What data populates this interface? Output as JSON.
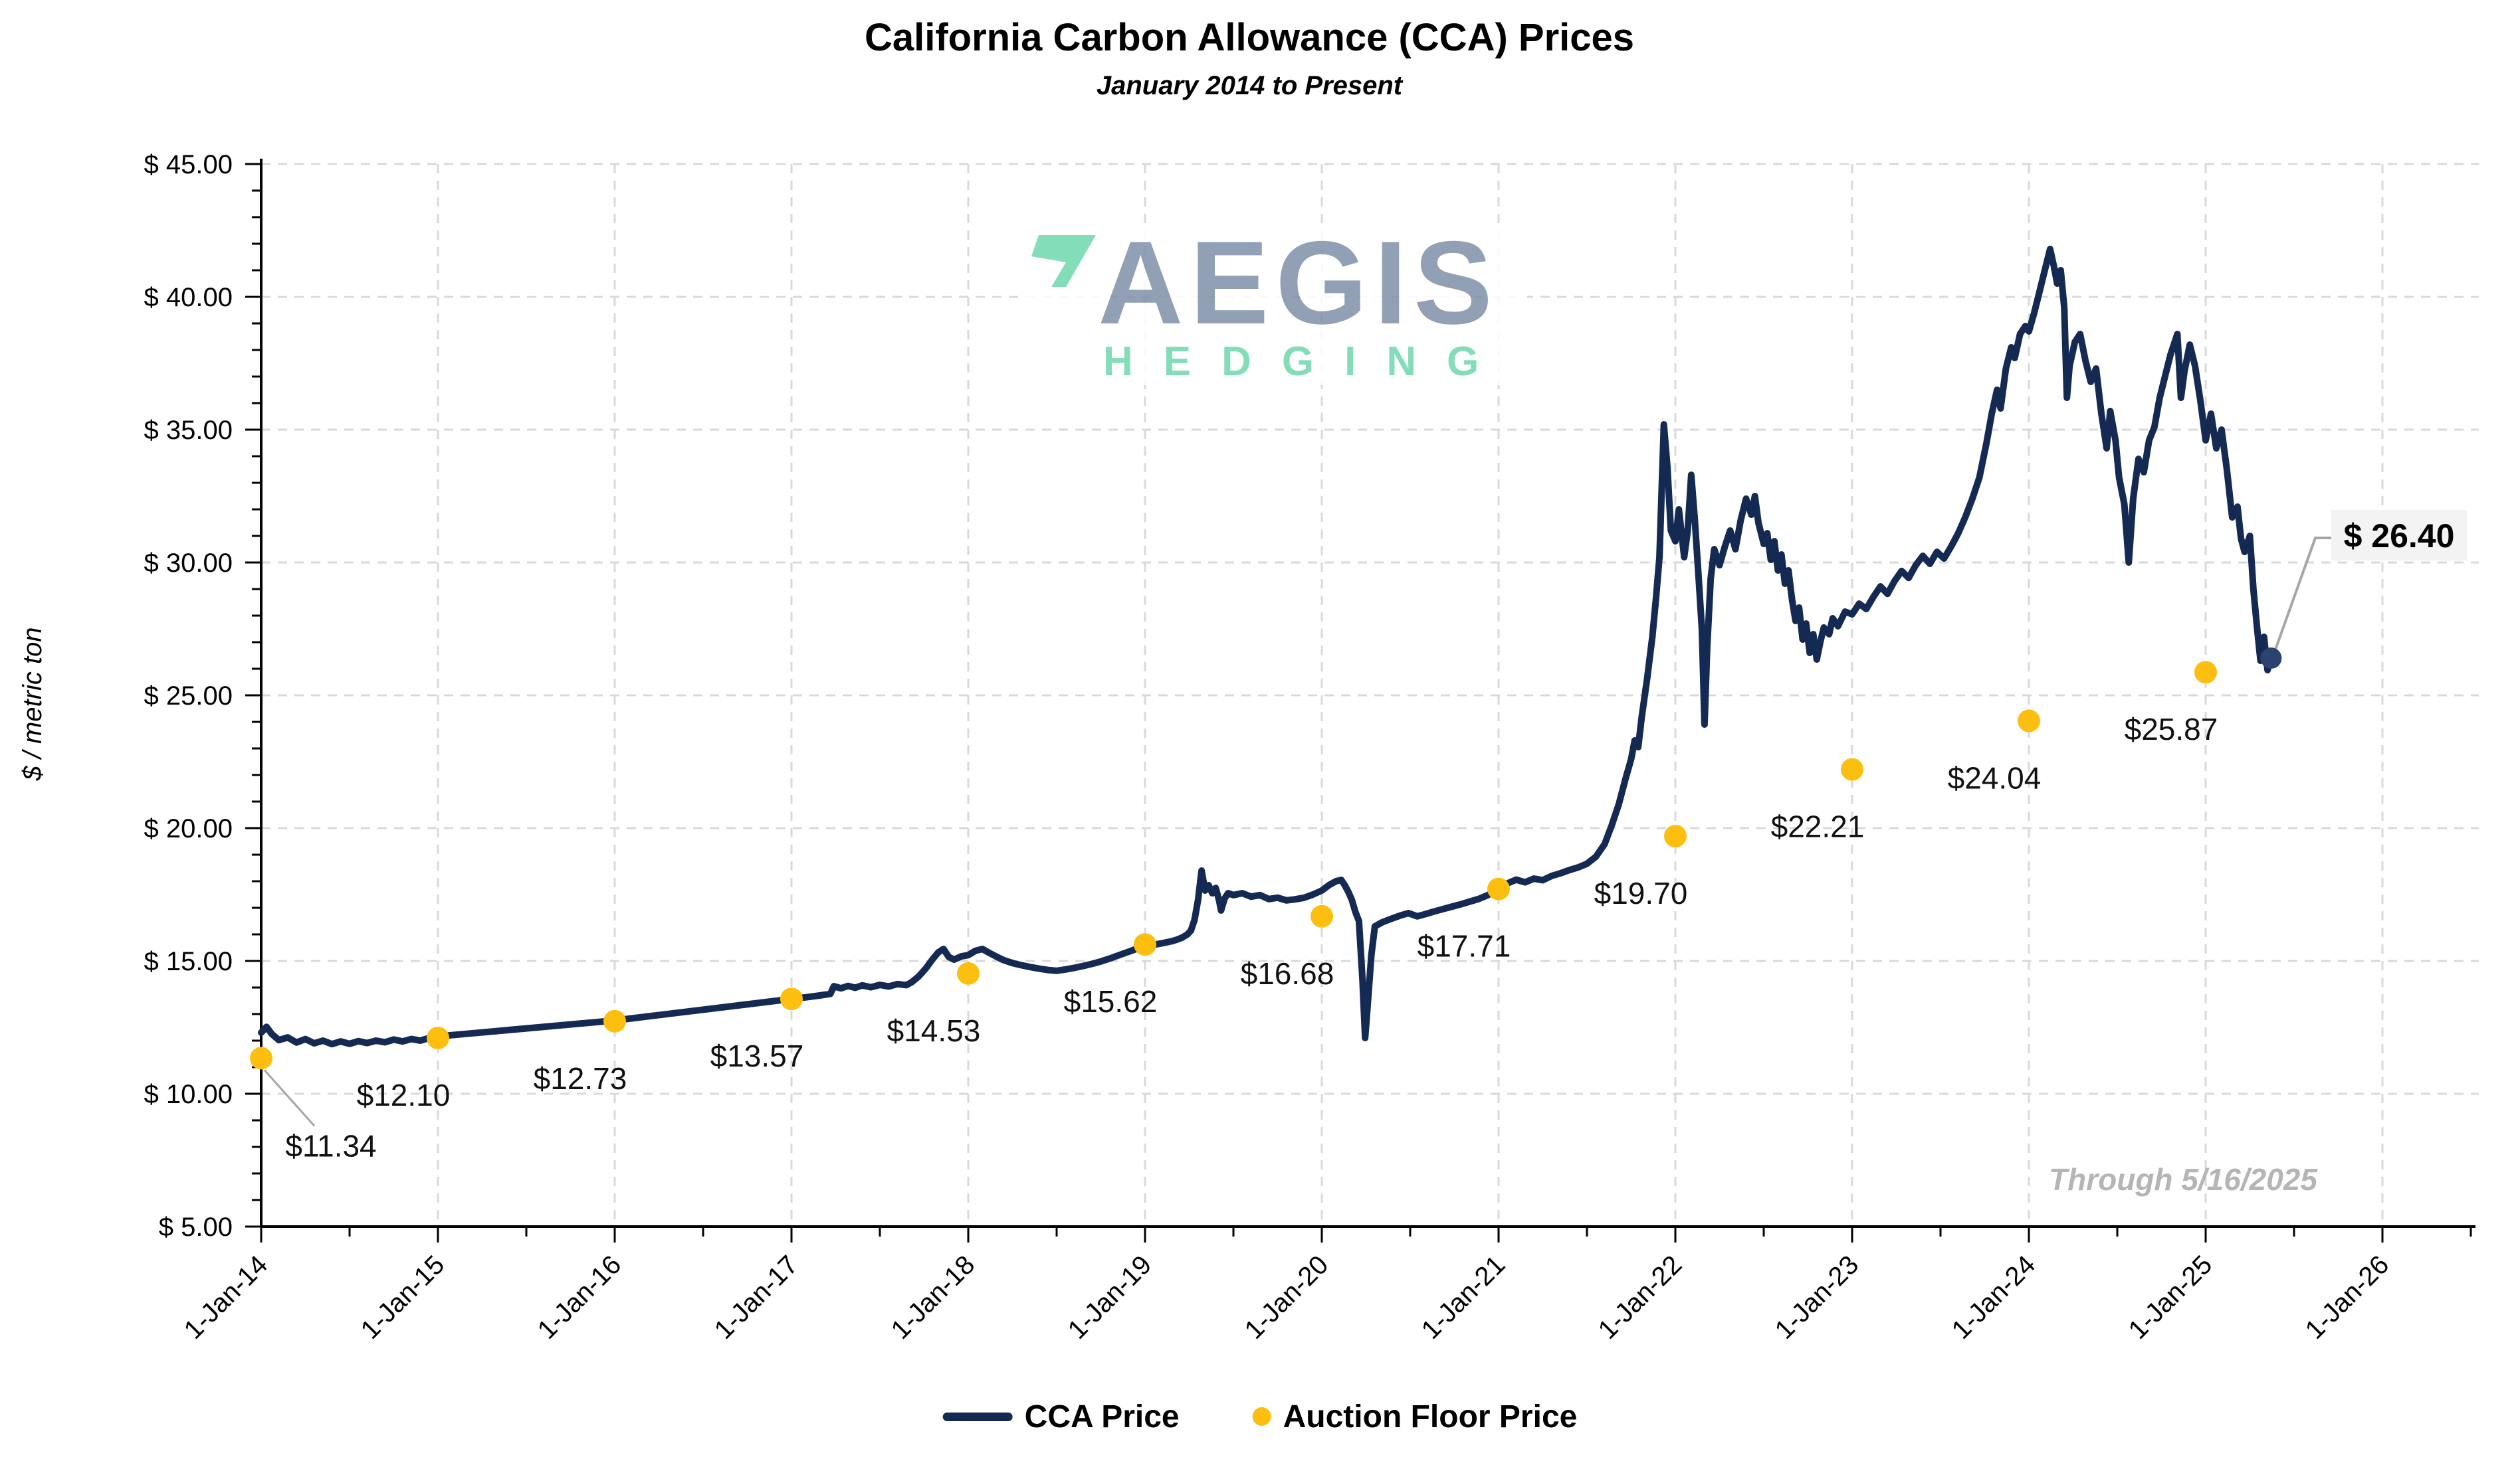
{
  "header": {
    "title": "California Carbon Allowance (CCA) Prices",
    "subtitle": "January 2014 to Present"
  },
  "watermark": {
    "name": "AEGIS",
    "tagline": "HEDGING",
    "name_color": "#7e90a8",
    "accent_color": "#6fd8ad"
  },
  "note": {
    "text": "Through 5/16/2025"
  },
  "callout": {
    "label": "$ 26.40"
  },
  "legend": {
    "items": [
      {
        "label": "CCA Price",
        "type": "line",
        "color": "#142a52"
      },
      {
        "label": "Auction Floor Price",
        "type": "dot",
        "color": "#fcbf10"
      }
    ]
  },
  "chart_data": {
    "type": "line",
    "title": "California Carbon Allowance (CCA) Prices",
    "subtitle": "January 2014 to Present",
    "xlabel": "",
    "ylabel": "$ / metric ton",
    "ylim": [
      5,
      45
    ],
    "ytick_step": 5,
    "grid": "dashed horizontal and vertical",
    "legend_position": "bottom center",
    "y_axis": {
      "tick_labels": [
        "$ 5.00",
        "$ 10.00",
        "$ 15.00",
        "$ 20.00",
        "$ 25.00",
        "$ 30.00",
        "$ 35.00",
        "$ 40.00",
        "$ 45.00"
      ]
    },
    "x_axis": {
      "tick_labels": [
        "1-Jan-14",
        "1-Jan-15",
        "1-Jan-16",
        "1-Jan-17",
        "1-Jan-18",
        "1-Jan-19",
        "1-Jan-20",
        "1-Jan-21",
        "1-Jan-22",
        "1-Jan-23",
        "1-Jan-24",
        "1-Jan-25",
        "1-Jan-26"
      ],
      "minor_ticks": "semiannual"
    },
    "series": [
      {
        "name": "CCA Price",
        "color": "#142a52",
        "x_unit": "years since 2014-01-01",
        "points": [
          [
            0,
            12.3
          ],
          [
            0.03,
            12.52
          ],
          [
            0.06,
            12.25
          ],
          [
            0.1,
            12.02
          ],
          [
            0.15,
            12.12
          ],
          [
            0.2,
            11.93
          ],
          [
            0.25,
            12.06
          ],
          [
            0.3,
            11.9
          ],
          [
            0.35,
            12.0
          ],
          [
            0.4,
            11.87
          ],
          [
            0.45,
            11.97
          ],
          [
            0.5,
            11.88
          ],
          [
            0.55,
            11.98
          ],
          [
            0.6,
            11.91
          ],
          [
            0.65,
            12.0
          ],
          [
            0.7,
            11.94
          ],
          [
            0.75,
            12.04
          ],
          [
            0.8,
            11.97
          ],
          [
            0.85,
            12.06
          ],
          [
            0.9,
            12.0
          ],
          [
            0.95,
            12.1
          ],
          [
            1.0,
            12.16
          ],
          [
            1.1,
            12.22
          ],
          [
            1.2,
            12.28
          ],
          [
            2.0,
            12.76
          ],
          [
            3.0,
            13.57
          ],
          [
            3.08,
            13.63
          ],
          [
            3.16,
            13.7
          ],
          [
            3.22,
            13.76
          ],
          [
            3.24,
            14.05
          ],
          [
            3.28,
            13.97
          ],
          [
            3.32,
            14.06
          ],
          [
            3.36,
            13.99
          ],
          [
            3.4,
            14.08
          ],
          [
            3.45,
            14.01
          ],
          [
            3.5,
            14.1
          ],
          [
            3.55,
            14.04
          ],
          [
            3.6,
            14.13
          ],
          [
            3.65,
            14.09
          ],
          [
            3.68,
            14.2
          ],
          [
            3.72,
            14.42
          ],
          [
            3.76,
            14.72
          ],
          [
            3.8,
            15.08
          ],
          [
            3.83,
            15.32
          ],
          [
            3.86,
            15.45
          ],
          [
            3.89,
            15.15
          ],
          [
            3.92,
            15.05
          ],
          [
            3.96,
            15.17
          ],
          [
            4.0,
            15.22
          ],
          [
            4.04,
            15.38
          ],
          [
            4.08,
            15.45
          ],
          [
            4.12,
            15.3
          ],
          [
            4.16,
            15.16
          ],
          [
            4.2,
            15.03
          ],
          [
            4.25,
            14.92
          ],
          [
            4.3,
            14.84
          ],
          [
            4.35,
            14.77
          ],
          [
            4.4,
            14.71
          ],
          [
            4.45,
            14.66
          ],
          [
            4.5,
            14.63
          ],
          [
            4.55,
            14.68
          ],
          [
            4.6,
            14.74
          ],
          [
            4.65,
            14.81
          ],
          [
            4.7,
            14.89
          ],
          [
            4.75,
            14.98
          ],
          [
            4.8,
            15.09
          ],
          [
            4.85,
            15.21
          ],
          [
            4.9,
            15.33
          ],
          [
            4.95,
            15.45
          ],
          [
            5.0,
            15.55
          ],
          [
            5.05,
            15.61
          ],
          [
            5.1,
            15.67
          ],
          [
            5.15,
            15.74
          ],
          [
            5.18,
            15.8
          ],
          [
            5.21,
            15.88
          ],
          [
            5.24,
            16.0
          ],
          [
            5.26,
            16.15
          ],
          [
            5.28,
            16.55
          ],
          [
            5.3,
            17.3
          ],
          [
            5.32,
            18.4
          ],
          [
            5.34,
            17.65
          ],
          [
            5.36,
            17.85
          ],
          [
            5.38,
            17.55
          ],
          [
            5.4,
            17.75
          ],
          [
            5.42,
            17.25
          ],
          [
            5.43,
            16.9
          ],
          [
            5.45,
            17.35
          ],
          [
            5.47,
            17.55
          ],
          [
            5.5,
            17.48
          ],
          [
            5.55,
            17.55
          ],
          [
            5.6,
            17.42
          ],
          [
            5.65,
            17.48
          ],
          [
            5.7,
            17.33
          ],
          [
            5.75,
            17.38
          ],
          [
            5.8,
            17.28
          ],
          [
            5.85,
            17.32
          ],
          [
            5.9,
            17.38
          ],
          [
            5.95,
            17.5
          ],
          [
            6.0,
            17.65
          ],
          [
            6.04,
            17.85
          ],
          [
            6.08,
            18.0
          ],
          [
            6.11,
            18.05
          ],
          [
            6.13,
            17.85
          ],
          [
            6.15,
            17.6
          ],
          [
            6.17,
            17.3
          ],
          [
            6.19,
            16.85
          ],
          [
            6.21,
            16.5
          ],
          [
            6.23,
            14.3
          ],
          [
            6.245,
            12.1
          ],
          [
            6.26,
            13.4
          ],
          [
            6.28,
            15.2
          ],
          [
            6.3,
            16.3
          ],
          [
            6.34,
            16.45
          ],
          [
            6.39,
            16.58
          ],
          [
            6.44,
            16.7
          ],
          [
            6.49,
            16.8
          ],
          [
            6.54,
            16.68
          ],
          [
            6.59,
            16.77
          ],
          [
            6.64,
            16.87
          ],
          [
            6.69,
            16.96
          ],
          [
            6.74,
            17.05
          ],
          [
            6.79,
            17.14
          ],
          [
            6.84,
            17.24
          ],
          [
            6.89,
            17.34
          ],
          [
            6.94,
            17.48
          ],
          [
            7.0,
            17.71
          ],
          [
            7.05,
            17.92
          ],
          [
            7.1,
            18.06
          ],
          [
            7.15,
            17.96
          ],
          [
            7.2,
            18.1
          ],
          [
            7.25,
            18.04
          ],
          [
            7.3,
            18.2
          ],
          [
            7.35,
            18.3
          ],
          [
            7.4,
            18.42
          ],
          [
            7.45,
            18.52
          ],
          [
            7.5,
            18.66
          ],
          [
            7.55,
            18.92
          ],
          [
            7.6,
            19.4
          ],
          [
            7.64,
            20.1
          ],
          [
            7.68,
            20.9
          ],
          [
            7.72,
            21.9
          ],
          [
            7.75,
            22.6
          ],
          [
            7.77,
            23.3
          ],
          [
            7.79,
            23.05
          ],
          [
            7.81,
            24.2
          ],
          [
            7.84,
            25.6
          ],
          [
            7.87,
            27.2
          ],
          [
            7.89,
            28.6
          ],
          [
            7.91,
            30.2
          ],
          [
            7.935,
            35.2
          ],
          [
            7.955,
            33.6
          ],
          [
            7.975,
            31.2
          ],
          [
            8.0,
            30.8
          ],
          [
            8.02,
            32.0
          ],
          [
            8.05,
            30.2
          ],
          [
            8.07,
            31.2
          ],
          [
            8.09,
            33.3
          ],
          [
            8.11,
            31.6
          ],
          [
            8.13,
            29.6
          ],
          [
            8.15,
            27.5
          ],
          [
            8.165,
            23.9
          ],
          [
            8.18,
            26.8
          ],
          [
            8.2,
            29.4
          ],
          [
            8.22,
            30.5
          ],
          [
            8.25,
            29.9
          ],
          [
            8.28,
            30.6
          ],
          [
            8.31,
            31.2
          ],
          [
            8.34,
            30.5
          ],
          [
            8.37,
            31.6
          ],
          [
            8.4,
            32.4
          ],
          [
            8.43,
            31.8
          ],
          [
            8.45,
            32.5
          ],
          [
            8.47,
            31.5
          ],
          [
            8.5,
            30.7
          ],
          [
            8.52,
            31.1
          ],
          [
            8.54,
            30.1
          ],
          [
            8.56,
            30.8
          ],
          [
            8.58,
            29.7
          ],
          [
            8.6,
            30.3
          ],
          [
            8.62,
            29.2
          ],
          [
            8.64,
            29.7
          ],
          [
            8.66,
            28.6
          ],
          [
            8.68,
            27.8
          ],
          [
            8.7,
            28.3
          ],
          [
            8.72,
            27.1
          ],
          [
            8.74,
            27.7
          ],
          [
            8.76,
            26.6
          ],
          [
            8.78,
            27.3
          ],
          [
            8.8,
            26.35
          ],
          [
            8.82,
            27.0
          ],
          [
            8.84,
            27.55
          ],
          [
            8.87,
            27.3
          ],
          [
            8.89,
            27.9
          ],
          [
            8.92,
            27.6
          ],
          [
            8.96,
            28.15
          ],
          [
            9.0,
            28.05
          ],
          [
            9.04,
            28.45
          ],
          [
            9.08,
            28.25
          ],
          [
            9.12,
            28.7
          ],
          [
            9.16,
            29.1
          ],
          [
            9.2,
            28.82
          ],
          [
            9.24,
            29.3
          ],
          [
            9.28,
            29.68
          ],
          [
            9.32,
            29.42
          ],
          [
            9.36,
            29.9
          ],
          [
            9.4,
            30.25
          ],
          [
            9.44,
            29.95
          ],
          [
            9.48,
            30.4
          ],
          [
            9.52,
            30.15
          ],
          [
            9.56,
            30.6
          ],
          [
            9.6,
            31.1
          ],
          [
            9.64,
            31.7
          ],
          [
            9.68,
            32.4
          ],
          [
            9.72,
            33.2
          ],
          [
            9.76,
            34.5
          ],
          [
            9.79,
            35.6
          ],
          [
            9.82,
            36.5
          ],
          [
            9.84,
            35.8
          ],
          [
            9.87,
            37.3
          ],
          [
            9.9,
            38.1
          ],
          [
            9.92,
            37.7
          ],
          [
            9.95,
            38.6
          ],
          [
            9.98,
            38.9
          ],
          [
            10.0,
            38.7
          ],
          [
            10.03,
            39.4
          ],
          [
            10.06,
            40.2
          ],
          [
            10.09,
            41.0
          ],
          [
            10.12,
            41.8
          ],
          [
            10.14,
            41.2
          ],
          [
            10.16,
            40.5
          ],
          [
            10.18,
            41.0
          ],
          [
            10.2,
            39.6
          ],
          [
            10.215,
            36.2
          ],
          [
            10.23,
            37.4
          ],
          [
            10.26,
            38.3
          ],
          [
            10.29,
            38.6
          ],
          [
            10.32,
            37.6
          ],
          [
            10.35,
            36.8
          ],
          [
            10.38,
            37.3
          ],
          [
            10.41,
            35.6
          ],
          [
            10.44,
            34.3
          ],
          [
            10.46,
            35.7
          ],
          [
            10.49,
            34.6
          ],
          [
            10.51,
            33.2
          ],
          [
            10.54,
            32.2
          ],
          [
            10.565,
            30.0
          ],
          [
            10.59,
            32.4
          ],
          [
            10.62,
            33.9
          ],
          [
            10.65,
            33.4
          ],
          [
            10.68,
            34.6
          ],
          [
            10.71,
            35.1
          ],
          [
            10.74,
            36.2
          ],
          [
            10.77,
            37.0
          ],
          [
            10.8,
            37.8
          ],
          [
            10.84,
            38.6
          ],
          [
            10.86,
            36.2
          ],
          [
            10.88,
            37.2
          ],
          [
            10.91,
            38.2
          ],
          [
            10.94,
            37.4
          ],
          [
            10.97,
            36.1
          ],
          [
            11.0,
            34.6
          ],
          [
            11.03,
            35.6
          ],
          [
            11.06,
            34.3
          ],
          [
            11.09,
            35.0
          ],
          [
            11.12,
            33.5
          ],
          [
            11.15,
            31.7
          ],
          [
            11.18,
            32.1
          ],
          [
            11.2,
            30.9
          ],
          [
            11.22,
            30.4
          ],
          [
            11.25,
            31.0
          ],
          [
            11.27,
            29.0
          ],
          [
            11.29,
            27.6
          ],
          [
            11.31,
            26.3
          ],
          [
            11.33,
            27.2
          ],
          [
            11.35,
            25.95
          ],
          [
            11.37,
            26.4
          ]
        ]
      },
      {
        "name": "Auction Floor Price",
        "color": "#fcbf10",
        "points": [
          {
            "x": 0,
            "date": "1-Jan-14",
            "value": 11.34
          },
          {
            "x": 1,
            "date": "1-Jan-15",
            "value": 12.1
          },
          {
            "x": 2,
            "date": "1-Jan-16",
            "value": 12.73
          },
          {
            "x": 3,
            "date": "1-Jan-17",
            "value": 13.57
          },
          {
            "x": 4,
            "date": "1-Jan-18",
            "value": 14.53
          },
          {
            "x": 5,
            "date": "1-Jan-19",
            "value": 15.62
          },
          {
            "x": 6,
            "date": "1-Jan-20",
            "value": 16.68
          },
          {
            "x": 7,
            "date": "1-Jan-21",
            "value": 17.71
          },
          {
            "x": 8,
            "date": "1-Jan-22",
            "value": 19.7
          },
          {
            "x": 9,
            "date": "1-Jan-23",
            "value": 22.21
          },
          {
            "x": 10,
            "date": "1-Jan-24",
            "value": 24.04
          },
          {
            "x": 11,
            "date": "1-Jan-25",
            "value": 25.87
          }
        ]
      }
    ],
    "last_point": {
      "x": 11.37,
      "value": 26.4,
      "label": "$ 26.40"
    }
  }
}
